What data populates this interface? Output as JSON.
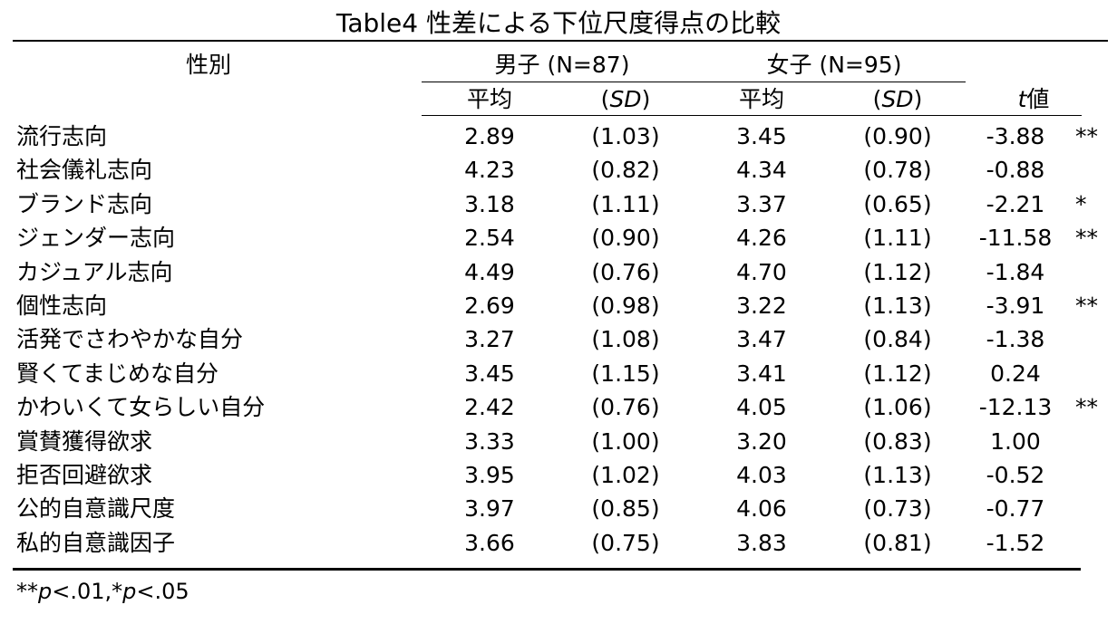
{
  "title": "Table4 性差による下位尺度得点の比較",
  "header": {
    "gender_label": "性別",
    "male_group": "男子 (N=87)",
    "female_group": "女子 (N=95)",
    "mean_label": "平均",
    "sd_label": "SD",
    "t_label": "t",
    "t_suffix": "値"
  },
  "rows": [
    {
      "label": "流行志向",
      "m_mean": "2.89",
      "m_sd": "(1.03)",
      "f_mean": "3.45",
      "f_sd": "(0.90)",
      "t": "-3.88",
      "sig": "**"
    },
    {
      "label": "社会儀礼志向",
      "m_mean": "4.23",
      "m_sd": "(0.82)",
      "f_mean": "4.34",
      "f_sd": "(0.78)",
      "t": "-0.88",
      "sig": ""
    },
    {
      "label": "ブランド志向",
      "m_mean": "3.18",
      "m_sd": "(1.11)",
      "f_mean": "3.37",
      "f_sd": "(0.65)",
      "t": "-2.21",
      "sig": "*"
    },
    {
      "label": "ジェンダー志向",
      "m_mean": "2.54",
      "m_sd": "(0.90)",
      "f_mean": "4.26",
      "f_sd": "(1.11)",
      "t": "-11.58",
      "sig": "**"
    },
    {
      "label": "カジュアル志向",
      "m_mean": "4.49",
      "m_sd": "(0.76)",
      "f_mean": "4.70",
      "f_sd": "(1.12)",
      "t": "-1.84",
      "sig": ""
    },
    {
      "label": "個性志向",
      "m_mean": "2.69",
      "m_sd": "(0.98)",
      "f_mean": "3.22",
      "f_sd": "(1.13)",
      "t": "-3.91",
      "sig": "**"
    },
    {
      "label": "活発でさわやかな自分",
      "m_mean": "3.27",
      "m_sd": "(1.08)",
      "f_mean": "3.47",
      "f_sd": "(0.84)",
      "t": "-1.38",
      "sig": ""
    },
    {
      "label": "賢くてまじめな自分",
      "m_mean": "3.45",
      "m_sd": "(1.15)",
      "f_mean": "3.41",
      "f_sd": "(1.12)",
      "t": "0.24",
      "sig": ""
    },
    {
      "label": "かわいくて女らしい自分",
      "m_mean": "2.42",
      "m_sd": "(0.76)",
      "f_mean": "4.05",
      "f_sd": "(1.06)",
      "t": "-12.13",
      "sig": "**"
    },
    {
      "label": "賞賛獲得欲求",
      "m_mean": "3.33",
      "m_sd": "(1.00)",
      "f_mean": "3.20",
      "f_sd": "(0.83)",
      "t": "1.00",
      "sig": ""
    },
    {
      "label": "拒否回避欲求",
      "m_mean": "3.95",
      "m_sd": "(1.02)",
      "f_mean": "4.03",
      "f_sd": "(1.13)",
      "t": "-0.52",
      "sig": ""
    },
    {
      "label": "公的自意識尺度",
      "m_mean": "3.97",
      "m_sd": "(0.85)",
      "f_mean": "4.06",
      "f_sd": "(0.73)",
      "t": "-0.77",
      "sig": ""
    },
    {
      "label": "私的自意識因子",
      "m_mean": "3.66",
      "m_sd": "(0.75)",
      "f_mean": "3.83",
      "f_sd": "(0.81)",
      "t": "-1.52",
      "sig": ""
    }
  ],
  "footnote": {
    "stars2": "**",
    "p1": "p",
    "thr1": "<.01,",
    "stars1": "*",
    "p2": "p",
    "thr2": "<.05"
  }
}
